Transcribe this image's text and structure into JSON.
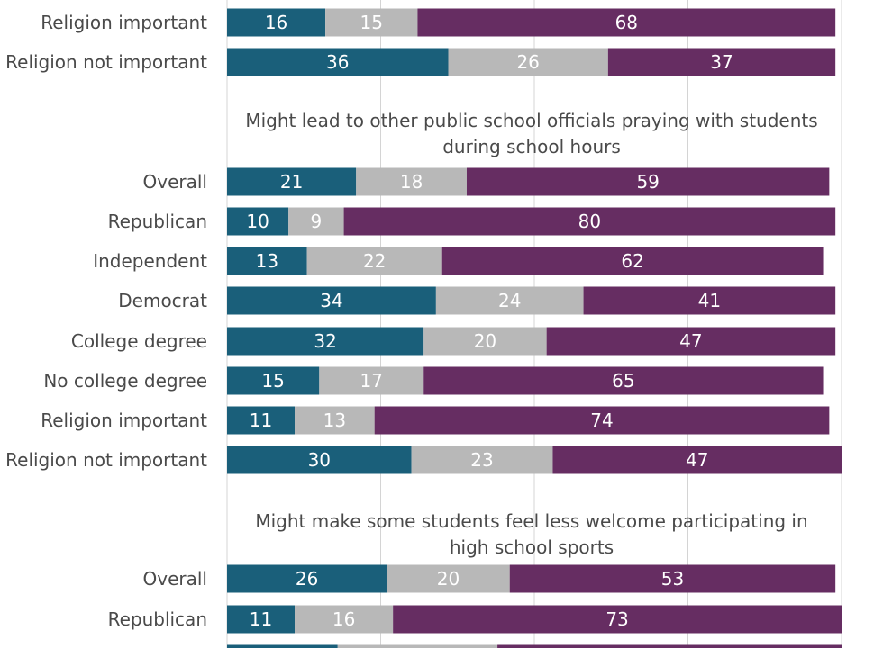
{
  "chart_data": {
    "type": "bar",
    "orientation": "horizontal",
    "stacked": true,
    "xlim": [
      0,
      100
    ],
    "grid": true,
    "colors": [
      "#1a5f7a",
      "#b8b8b8",
      "#662d62"
    ],
    "groups": [
      {
        "title": [],
        "rows": [
          {
            "label": "Religion important",
            "values": [
              16,
              15,
              68
            ]
          },
          {
            "label": "Religion not important",
            "values": [
              36,
              26,
              37
            ]
          }
        ]
      },
      {
        "title": [
          "Might lead to other public school officials praying with students",
          "during school hours"
        ],
        "rows": [
          {
            "label": "Overall",
            "values": [
              21,
              18,
              59
            ]
          },
          {
            "label": "Republican",
            "values": [
              10,
              9,
              80
            ]
          },
          {
            "label": "Independent",
            "values": [
              13,
              22,
              62
            ]
          },
          {
            "label": "Democrat",
            "values": [
              34,
              24,
              41
            ]
          },
          {
            "label": "College degree",
            "values": [
              32,
              20,
              47
            ]
          },
          {
            "label": "No college degree",
            "values": [
              15,
              17,
              65
            ]
          },
          {
            "label": "Religion important",
            "values": [
              11,
              13,
              74
            ]
          },
          {
            "label": "Religion not important",
            "values": [
              30,
              23,
              47
            ]
          }
        ]
      },
      {
        "title": [
          "Might make some students feel less welcome participating in",
          "high school sports"
        ],
        "rows": [
          {
            "label": "Overall",
            "values": [
              26,
              20,
              53
            ]
          },
          {
            "label": "Republican",
            "values": [
              11,
              16,
              73
            ]
          },
          {
            "label": "",
            "values": [
              18,
              26,
              56
            ]
          }
        ]
      }
    ]
  }
}
